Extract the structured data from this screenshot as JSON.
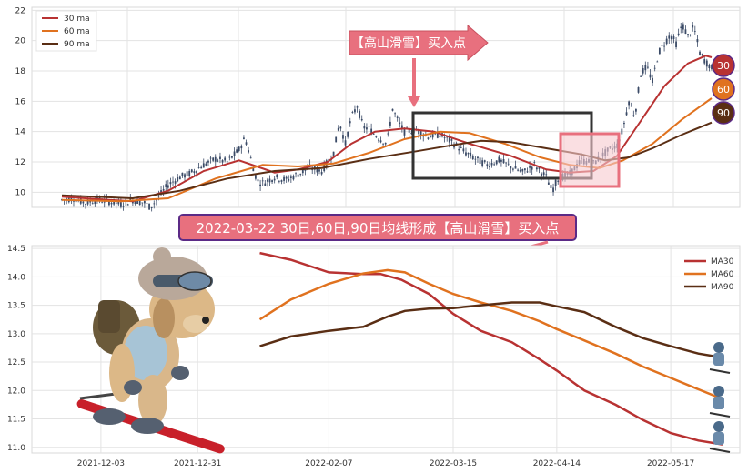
{
  "charts": [
    {
      "id": "price",
      "type": "line",
      "legend": {
        "placement": "top-left",
        "entries": [
          {
            "label": "30 ma",
            "color": "#b83232"
          },
          {
            "label": "60 ma",
            "color": "#e0721f"
          },
          {
            "label": "90 ma",
            "color": "#5a2e14"
          }
        ]
      },
      "ylim": [
        9,
        22.2
      ],
      "yticks": [
        10,
        12,
        14,
        16,
        18,
        20,
        22
      ],
      "grid": true,
      "candles_color": "#3a4a66",
      "price_path": [
        [
          0,
          9.5
        ],
        [
          10,
          9.6
        ],
        [
          20,
          9.3
        ],
        [
          30,
          9.5
        ],
        [
          40,
          9.4
        ],
        [
          50,
          9.2
        ],
        [
          60,
          9.5
        ],
        [
          70,
          9.3
        ],
        [
          75,
          9.0
        ],
        [
          80,
          9.5
        ],
        [
          90,
          10.5
        ],
        [
          100,
          11.0
        ],
        [
          110,
          11.3
        ],
        [
          120,
          11.8
        ],
        [
          130,
          12.2
        ],
        [
          140,
          12.0
        ],
        [
          150,
          12.8
        ],
        [
          155,
          13.6
        ],
        [
          160,
          12.2
        ],
        [
          165,
          10.8
        ],
        [
          170,
          10.6
        ],
        [
          180,
          11.0
        ],
        [
          190,
          10.8
        ],
        [
          200,
          11.2
        ],
        [
          210,
          11.6
        ],
        [
          220,
          11.4
        ],
        [
          230,
          12.6
        ],
        [
          235,
          14.6
        ],
        [
          240,
          13.2
        ],
        [
          245,
          14.9
        ],
        [
          250,
          15.7
        ],
        [
          255,
          14.3
        ],
        [
          260,
          14.2
        ],
        [
          265,
          13.8
        ],
        [
          270,
          13.5
        ],
        [
          275,
          13.2
        ],
        [
          280,
          15.5
        ],
        [
          285,
          14.6
        ],
        [
          290,
          14.0
        ],
        [
          300,
          14.1
        ],
        [
          310,
          13.7
        ],
        [
          320,
          13.8
        ],
        [
          330,
          13.3
        ],
        [
          340,
          12.7
        ],
        [
          350,
          12.2
        ],
        [
          360,
          11.8
        ],
        [
          370,
          12.1
        ],
        [
          380,
          11.7
        ],
        [
          390,
          11.3
        ],
        [
          400,
          11.8
        ],
        [
          410,
          11.0
        ],
        [
          415,
          10.1
        ],
        [
          420,
          10.9
        ],
        [
          430,
          11.2
        ],
        [
          440,
          12.1
        ],
        [
          450,
          11.9
        ],
        [
          460,
          12.6
        ],
        [
          470,
          13.1
        ],
        [
          475,
          14.2
        ],
        [
          480,
          16.0
        ],
        [
          485,
          15.0
        ],
        [
          490,
          17.8
        ],
        [
          495,
          18.3
        ],
        [
          500,
          17.3
        ],
        [
          505,
          19.2
        ],
        [
          510,
          19.8
        ],
        [
          515,
          20.4
        ],
        [
          520,
          19.8
        ],
        [
          525,
          21.1
        ],
        [
          530,
          20.3
        ],
        [
          535,
          20.9
        ],
        [
          540,
          19.2
        ],
        [
          545,
          18.6
        ],
        [
          550,
          18.2
        ]
      ],
      "ma30": [
        [
          0,
          9.7
        ],
        [
          40,
          9.5
        ],
        [
          60,
          9.4
        ],
        [
          90,
          10.1
        ],
        [
          120,
          11.4
        ],
        [
          150,
          12.1
        ],
        [
          165,
          11.7
        ],
        [
          180,
          11.3
        ],
        [
          200,
          11.5
        ],
        [
          225,
          12.0
        ],
        [
          245,
          13.2
        ],
        [
          265,
          14.0
        ],
        [
          290,
          14.2
        ],
        [
          315,
          14.0
        ],
        [
          345,
          13.2
        ],
        [
          380,
          12.4
        ],
        [
          410,
          11.5
        ],
        [
          430,
          11.3
        ],
        [
          450,
          11.4
        ],
        [
          470,
          12.4
        ],
        [
          490,
          14.7
        ],
        [
          510,
          17.0
        ],
        [
          530,
          18.5
        ],
        [
          545,
          19.0
        ],
        [
          550,
          18.9
        ]
      ],
      "ma60": [
        [
          0,
          9.5
        ],
        [
          50,
          9.4
        ],
        [
          90,
          9.6
        ],
        [
          130,
          10.9
        ],
        [
          170,
          11.8
        ],
        [
          200,
          11.7
        ],
        [
          230,
          11.9
        ],
        [
          260,
          12.6
        ],
        [
          290,
          13.5
        ],
        [
          320,
          14.0
        ],
        [
          345,
          13.9
        ],
        [
          375,
          13.2
        ],
        [
          405,
          12.3
        ],
        [
          430,
          11.8
        ],
        [
          455,
          11.6
        ],
        [
          475,
          12.1
        ],
        [
          500,
          13.2
        ],
        [
          525,
          14.8
        ],
        [
          550,
          16.2
        ]
      ],
      "ma90": [
        [
          0,
          9.8
        ],
        [
          60,
          9.6
        ],
        [
          100,
          10.1
        ],
        [
          140,
          10.9
        ],
        [
          180,
          11.4
        ],
        [
          220,
          11.6
        ],
        [
          260,
          12.2
        ],
        [
          300,
          12.7
        ],
        [
          330,
          13.1
        ],
        [
          355,
          13.4
        ],
        [
          380,
          13.3
        ],
        [
          410,
          12.9
        ],
        [
          440,
          12.5
        ],
        [
          460,
          12.1
        ],
        [
          480,
          12.3
        ],
        [
          500,
          12.9
        ],
        [
          525,
          13.8
        ],
        [
          550,
          14.6
        ]
      ],
      "ma_badges": [
        "30",
        "60",
        "90"
      ],
      "annotation": "【高山滑雪】买入点"
    },
    {
      "id": "ma",
      "type": "line",
      "legend": {
        "placement": "top-right",
        "entries": [
          {
            "label": "MA30",
            "color": "#b83232"
          },
          {
            "label": "MA60",
            "color": "#e0721f"
          },
          {
            "label": "MA90",
            "color": "#5a2e14"
          }
        ]
      },
      "ylim": [
        10.9,
        14.55
      ],
      "yticks": [
        "11.0",
        "11.5",
        "12.0",
        "12.5",
        "13.0",
        "13.5",
        "14.0",
        "14.5"
      ],
      "xlim": [
        "2021-11-13",
        "2022-06-06"
      ],
      "xticks": [
        "2021-12-03",
        "2021-12-31",
        "2022-02-07",
        "2022-03-15",
        "2022-04-14",
        "2022-05-17"
      ],
      "grid": true,
      "series": [
        {
          "name": "MA30",
          "color": "#b83232",
          "x": [
            "2022-01-18",
            "2022-01-27",
            "2022-02-07",
            "2022-02-17",
            "2022-02-22",
            "2022-02-28",
            "2022-03-08",
            "2022-03-15",
            "2022-03-23",
            "2022-04-01",
            "2022-04-09",
            "2022-04-14",
            "2022-04-22",
            "2022-05-01",
            "2022-05-09",
            "2022-05-17",
            "2022-05-25",
            "2022-06-01"
          ],
          "values": [
            14.42,
            14.3,
            14.08,
            14.05,
            14.05,
            13.95,
            13.7,
            13.35,
            13.05,
            12.85,
            12.55,
            12.35,
            12.0,
            11.75,
            11.48,
            11.25,
            11.12,
            11.05
          ]
        },
        {
          "name": "MA60",
          "color": "#e0721f",
          "x": [
            "2022-01-18",
            "2022-01-27",
            "2022-02-07",
            "2022-02-17",
            "2022-02-24",
            "2022-03-01",
            "2022-03-08",
            "2022-03-15",
            "2022-03-23",
            "2022-04-01",
            "2022-04-09",
            "2022-04-14",
            "2022-04-22",
            "2022-05-01",
            "2022-05-09",
            "2022-05-17",
            "2022-05-25",
            "2022-06-01"
          ],
          "values": [
            13.25,
            13.6,
            13.88,
            14.06,
            14.12,
            14.08,
            13.88,
            13.7,
            13.55,
            13.4,
            13.22,
            13.08,
            12.88,
            12.65,
            12.42,
            12.22,
            12.02,
            11.85
          ]
        },
        {
          "name": "MA90",
          "color": "#5a2e14",
          "x": [
            "2022-01-18",
            "2022-01-27",
            "2022-02-07",
            "2022-02-17",
            "2022-02-24",
            "2022-03-01",
            "2022-03-08",
            "2022-03-15",
            "2022-03-23",
            "2022-04-01",
            "2022-04-09",
            "2022-04-14",
            "2022-04-22",
            "2022-05-01",
            "2022-05-09",
            "2022-05-17",
            "2022-05-25",
            "2022-06-01"
          ],
          "values": [
            12.78,
            12.95,
            13.05,
            13.12,
            13.3,
            13.4,
            13.44,
            13.45,
            13.5,
            13.55,
            13.55,
            13.48,
            13.38,
            13.12,
            12.92,
            12.78,
            12.65,
            12.58
          ]
        }
      ]
    }
  ],
  "banner": "2022-03-22 30日,60日,90日均线形成【高山滑雪】买入点",
  "colors": {
    "accent_pink": "#e8707e",
    "banner_fill": "#e8707e",
    "banner_border": "#5b2a86",
    "badge30": "#b83232",
    "badge60": "#e0721f",
    "badge90": "#5a2e14"
  },
  "icons": [
    "ski-dog-illustration",
    "skier-icon"
  ]
}
